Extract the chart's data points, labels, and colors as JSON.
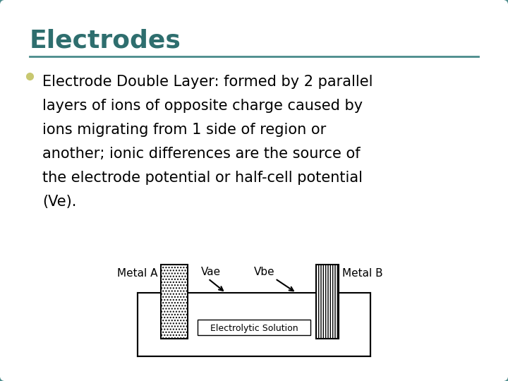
{
  "title": "Electrodes",
  "title_color": "#2E6E6E",
  "background_color": "#FFFFFF",
  "border_color": "#4A8B8B",
  "line_color": "#4A8B8B",
  "bullet_color": "#C8C870",
  "text_color": "#000000",
  "lines": [
    "Electrode Double Layer: formed by 2 parallel",
    "layers of ions of opposite charge caused by",
    "ions migrating from 1 side of region or",
    "another; ionic differences are the source of",
    "the electrode potential or half-cell potential",
    "(Ve)."
  ],
  "diagram": {
    "solution_label": "Electrolytic Solution",
    "metal_a_label": "Metal A",
    "metal_b_label": "Metal B",
    "vae_label": "Vae",
    "vbe_label": "Vbe"
  }
}
